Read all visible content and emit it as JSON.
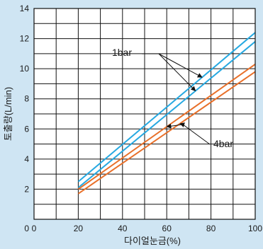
{
  "chart_data": {
    "type": "line",
    "xlabel": "다이얼눈금(%)",
    "ylabel": "토출량(L/min)",
    "xlim": [
      0,
      100
    ],
    "ylim": [
      0,
      14
    ],
    "x_ticks": [
      0,
      20,
      40,
      60,
      80,
      100
    ],
    "y_ticks": [
      2,
      4,
      6,
      8,
      10,
      12,
      14
    ],
    "grid": true,
    "series": [
      {
        "name": "1bar",
        "color": "#27a9e1",
        "x": [
          20,
          100
        ],
        "y": [
          2.5,
          12.4
        ]
      },
      {
        "name": "1bar",
        "color": "#27a9e1",
        "x": [
          20,
          100
        ],
        "y": [
          2.1,
          11.8
        ]
      },
      {
        "name": "4bar",
        "color": "#e8702a",
        "x": [
          20,
          100
        ],
        "y": [
          2.0,
          10.3
        ]
      },
      {
        "name": "4bar",
        "color": "#e8702a",
        "x": [
          20,
          100
        ],
        "y": [
          1.7,
          9.8
        ]
      }
    ],
    "annotations": [
      {
        "text": "1bar",
        "targets": [
          0,
          1
        ]
      },
      {
        "text": "4bar",
        "targets": [
          2,
          3
        ]
      }
    ]
  }
}
